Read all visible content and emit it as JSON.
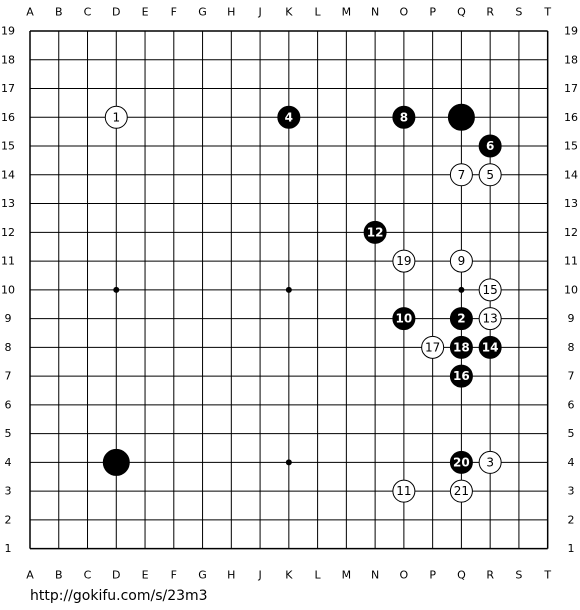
{
  "board": {
    "columns": [
      "A",
      "B",
      "C",
      "D",
      "E",
      "F",
      "G",
      "H",
      "J",
      "K",
      "L",
      "M",
      "N",
      "O",
      "P",
      "Q",
      "R",
      "S",
      "T"
    ],
    "rows": [
      19,
      18,
      17,
      16,
      15,
      14,
      13,
      12,
      11,
      10,
      9,
      8,
      7,
      6,
      5,
      4,
      3,
      2,
      1
    ],
    "stones": [
      {
        "col": "D",
        "row": 16,
        "color": "white",
        "label": "1"
      },
      {
        "col": "Q",
        "row": 9,
        "color": "black",
        "label": "2"
      },
      {
        "col": "R",
        "row": 4,
        "color": "white",
        "label": "3"
      },
      {
        "col": "K",
        "row": 16,
        "color": "black",
        "label": "4"
      },
      {
        "col": "R",
        "row": 14,
        "color": "white",
        "label": "5"
      },
      {
        "col": "R",
        "row": 15,
        "color": "black",
        "label": "6"
      },
      {
        "col": "Q",
        "row": 14,
        "color": "white",
        "label": "7"
      },
      {
        "col": "O",
        "row": 16,
        "color": "black",
        "label": "8"
      },
      {
        "col": "Q",
        "row": 11,
        "color": "white",
        "label": "9"
      },
      {
        "col": "O",
        "row": 9,
        "color": "black",
        "label": "10"
      },
      {
        "col": "O",
        "row": 3,
        "color": "white",
        "label": "11"
      },
      {
        "col": "N",
        "row": 12,
        "color": "black",
        "label": "12"
      },
      {
        "col": "R",
        "row": 9,
        "color": "white",
        "label": "13"
      },
      {
        "col": "R",
        "row": 8,
        "color": "black",
        "label": "14"
      },
      {
        "col": "R",
        "row": 10,
        "color": "white",
        "label": "15"
      },
      {
        "col": "Q",
        "row": 7,
        "color": "black",
        "label": "16"
      },
      {
        "col": "P",
        "row": 8,
        "color": "white",
        "label": "17"
      },
      {
        "col": "Q",
        "row": 8,
        "color": "black",
        "label": "18"
      },
      {
        "col": "O",
        "row": 11,
        "color": "white",
        "label": "19"
      },
      {
        "col": "Q",
        "row": 4,
        "color": "black",
        "label": "20"
      },
      {
        "col": "Q",
        "row": 3,
        "color": "white",
        "label": "21"
      },
      {
        "col": "Q",
        "row": 16,
        "color": "black"
      },
      {
        "col": "D",
        "row": 4,
        "color": "black"
      }
    ]
  },
  "footer": {
    "url": "http://gokifu.com/s/23m3"
  }
}
